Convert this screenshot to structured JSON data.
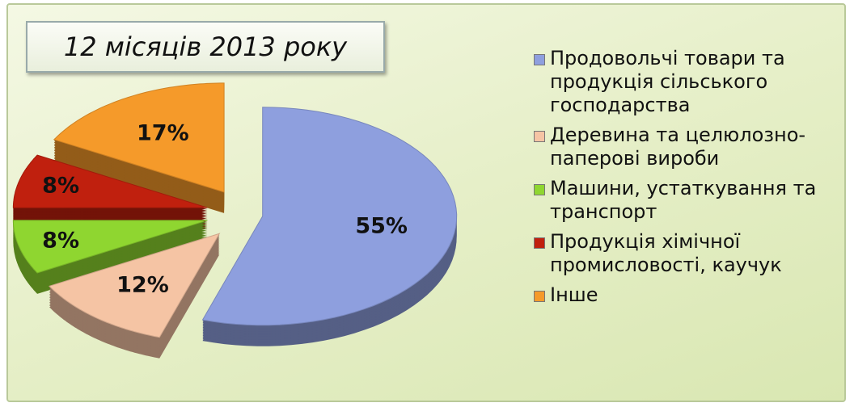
{
  "chart_data": {
    "type": "pie",
    "title": "12 місяців 2013 року",
    "categories": [
      "Продовольчі товари та продукція сільського господарства",
      "Деревина та целюлозно-паперові вироби",
      "Машини, устаткування та транспорт",
      "Продукція хімічної промисловості, каучук",
      "Інше"
    ],
    "values": [
      55,
      12,
      8,
      8,
      17
    ],
    "value_labels": [
      "55%",
      "12%",
      "8%",
      "8%",
      "17%"
    ],
    "colors": [
      "#8e9fde",
      "#f5c4a4",
      "#8fd630",
      "#c0200e",
      "#f59a2a"
    ],
    "legend": "right"
  }
}
